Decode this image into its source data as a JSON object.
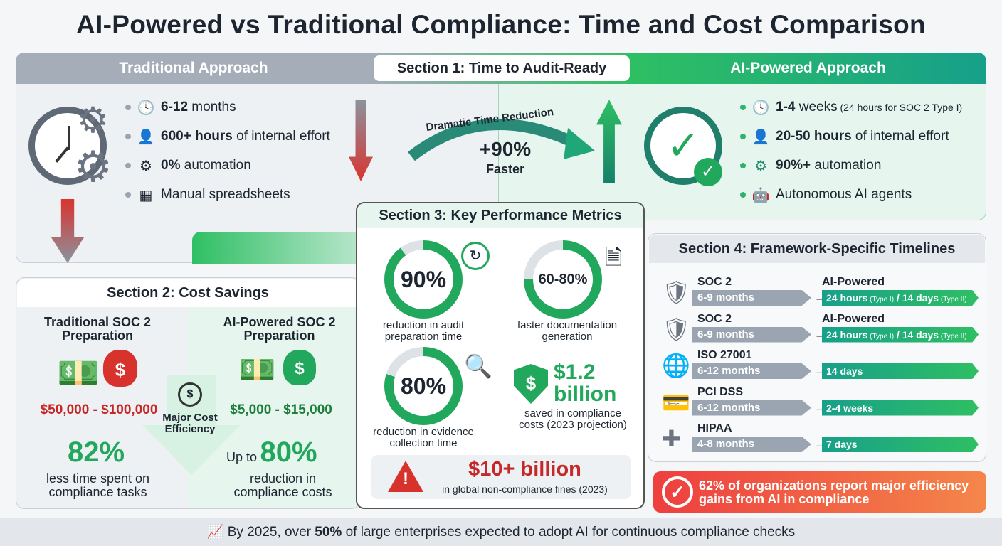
{
  "title": "AI-Powered vs Traditional Compliance: Time and Cost Comparison",
  "section1": {
    "label": "Section 1: Time to Audit-Ready",
    "traditional_header": "Traditional Approach",
    "ai_header": "AI-Powered Approach",
    "traditional_items": [
      {
        "icon": "clock-icon",
        "bold": "6-12",
        "text": " months"
      },
      {
        "icon": "worker-laptop-icon",
        "bold": "600+ hours",
        "text": " of internal effort"
      },
      {
        "icon": "no-automation-gear-icon",
        "bold": "0%",
        "text": " automation"
      },
      {
        "icon": "spreadsheet-icon",
        "bold": "",
        "text": "Manual spreadsheets"
      }
    ],
    "ai_items": [
      {
        "icon": "clock-icon",
        "bold": "1-4",
        "text": " weeks",
        "small": " (24 hours for SOC 2 Type I)"
      },
      {
        "icon": "user-ai-icon",
        "bold": "20-50 hours",
        "text": " of internal effort",
        "small": ""
      },
      {
        "icon": "lightning-gear-icon",
        "bold": "90%+",
        "text": " automation",
        "small": ""
      },
      {
        "icon": "robot-icon",
        "bold": "",
        "text": "Autonomous AI agents",
        "small": ""
      }
    ],
    "arrow_label": "Dramatic Time Reduction",
    "reduction": "+90%",
    "reduction_sub": "Faster"
  },
  "section2": {
    "label": "Section 2: Cost Savings",
    "traditional_title": "Traditional SOC 2 Preparation",
    "traditional_cost": "$50,000 - $100,000",
    "ai_title": "AI-Powered SOC 2 Preparation",
    "ai_cost": "$5,000 - $15,000",
    "efficiency_label": "Major Cost Efficiency",
    "time_stat": "82%",
    "time_stat_caption": "less time spent on compliance tasks",
    "cost_prefix": "Up to",
    "cost_stat": "80%",
    "cost_stat_caption": "reduction in compliance costs"
  },
  "section3": {
    "label": "Section 3: Key Performance Metrics",
    "metrics": [
      {
        "value": "90%",
        "caption": "reduction in audit preparation time",
        "fill": 0.9
      },
      {
        "value": "60-80%",
        "caption": "faster documentation generation",
        "fill": 0.75
      },
      {
        "value": "80%",
        "caption": "reduction in evidence collection time",
        "fill": 0.8
      }
    ],
    "savings_value": "$1.2 billion",
    "savings_caption": "saved in compliance costs (2023 projection)",
    "fines_value": "$10+ billion",
    "fines_caption": "in global non-compliance fines (2023)"
  },
  "section4": {
    "label": "Section 4: Framework-Specific Timelines",
    "rows": [
      {
        "icon": "shield-check-icon",
        "name": "SOC 2",
        "traditional": "6-9 months",
        "ai_label": "AI-Powered",
        "ai_a": "24 hours",
        "ai_a_note": " (Type I)",
        "ai_b": " / 14 days",
        "ai_b_note": " (Type II)"
      },
      {
        "icon": "shield-badge-icon",
        "name": "SOC 2",
        "traditional": "6-9 months",
        "ai_label": "AI-Powered",
        "ai_a": "24 hours",
        "ai_a_note": " (Type I)",
        "ai_b": " / 14 days",
        "ai_b_note": " (Type II)"
      },
      {
        "icon": "globe-lock-icon",
        "name": "ISO 27001",
        "traditional": "6-12 months",
        "ai_label": "",
        "ai_a": "14 days",
        "ai_a_note": "",
        "ai_b": "",
        "ai_b_note": ""
      },
      {
        "icon": "credit-card-icon",
        "name": "PCI DSS",
        "traditional": "6-12 months",
        "ai_label": "",
        "ai_a": "2-4 weeks",
        "ai_a_note": "",
        "ai_b": "",
        "ai_b_note": ""
      },
      {
        "icon": "medical-cross-icon",
        "name": "HIPAA",
        "traditional": "4-8 months",
        "ai_label": "",
        "ai_a": "7 days",
        "ai_a_note": "",
        "ai_b": "",
        "ai_b_note": ""
      }
    ]
  },
  "banner": "62% of organizations report major efficiency gains from AI in compliance",
  "footer": {
    "pre": "By 2025, over ",
    "bold": "50%",
    "post": " of large enterprises expected to adopt AI for continuous compliance checks"
  },
  "colors": {
    "green": "#22a85c",
    "teal": "#17a08a",
    "gray": "#9aa5b1",
    "red": "#c62828",
    "orange": "#f2683a"
  }
}
